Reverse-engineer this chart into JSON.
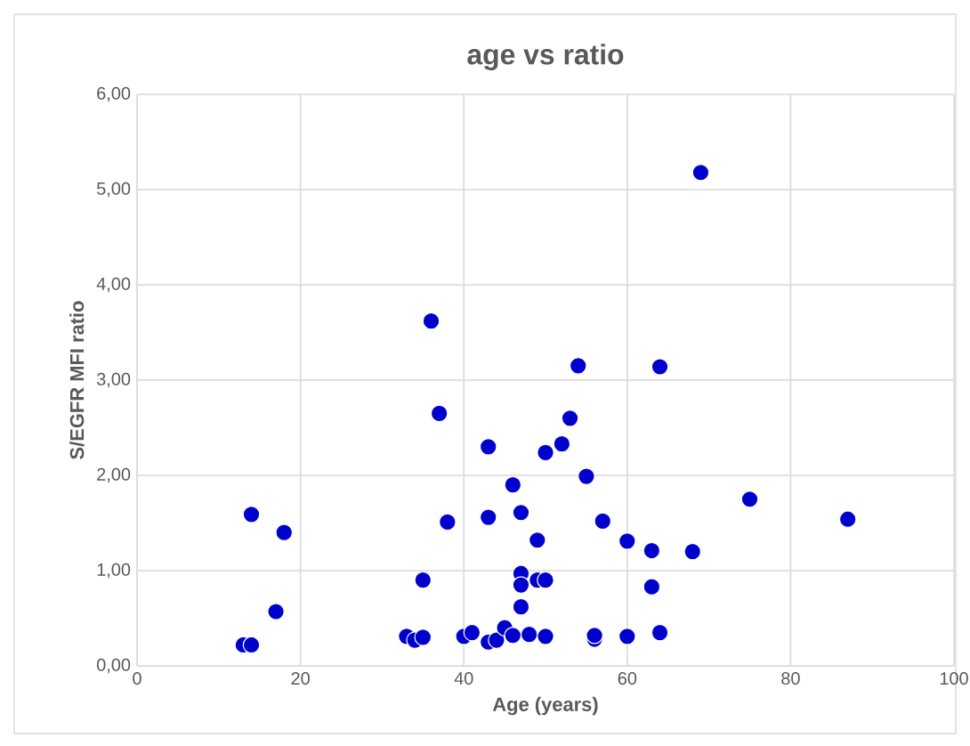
{
  "chart_data": {
    "type": "scatter",
    "title": "age vs ratio",
    "xlabel": "Age (years)",
    "ylabel": "S/EGFR MFI ratio",
    "xlim": [
      0,
      100
    ],
    "xticks": [
      0,
      20,
      40,
      60,
      80,
      100
    ],
    "ylim": [
      0,
      6
    ],
    "yticks": [
      {
        "value": 0,
        "label": "0,00"
      },
      {
        "value": 1,
        "label": "1,00"
      },
      {
        "value": 2,
        "label": "2,00"
      },
      {
        "value": 3,
        "label": "3,00"
      },
      {
        "value": 4,
        "label": "4,00"
      },
      {
        "value": 5,
        "label": "5,00"
      },
      {
        "value": 6,
        "label": "6,00"
      }
    ],
    "grid": true,
    "marker": "circle",
    "series": [
      {
        "color": "#0000cc",
        "x": [
          13,
          14,
          14,
          17,
          18,
          33,
          34,
          35,
          35,
          36,
          37,
          38,
          40,
          41,
          43,
          44,
          43,
          43,
          45,
          46,
          46,
          47,
          47,
          47,
          47,
          48,
          49,
          49,
          50,
          50,
          50,
          52,
          53,
          54,
          55,
          56,
          56,
          57,
          60,
          60,
          63,
          63,
          64,
          64,
          68,
          69,
          75,
          87
        ],
        "values": [
          0.22,
          0.22,
          1.59,
          0.57,
          1.4,
          0.31,
          0.27,
          0.3,
          0.9,
          3.62,
          2.65,
          1.51,
          0.31,
          0.35,
          0.25,
          0.27,
          1.56,
          2.3,
          0.4,
          0.32,
          1.9,
          1.61,
          0.97,
          0.85,
          0.62,
          0.33,
          1.32,
          0.9,
          0.9,
          0.31,
          2.24,
          2.33,
          2.6,
          3.15,
          1.99,
          0.28,
          0.32,
          1.52,
          1.31,
          0.31,
          1.21,
          0.83,
          0.35,
          3.14,
          1.2,
          5.18,
          1.75,
          1.54
        ]
      }
    ]
  }
}
